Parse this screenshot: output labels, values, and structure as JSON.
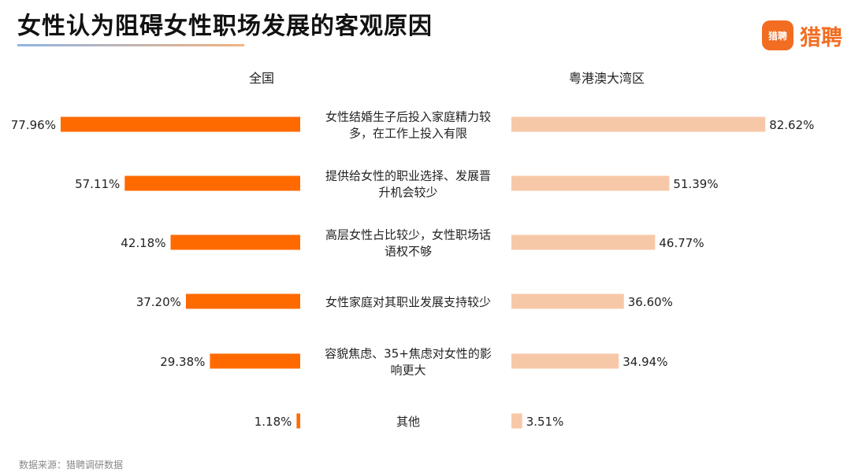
{
  "title": "女性认为阻碍女性职场发展的客观原因",
  "logo": {
    "badge": "猎聘",
    "text": "猎聘"
  },
  "source": "数据来源：猎聘调研数据",
  "colors": {
    "national": "#ff6a00",
    "gba": "#f7c8a8",
    "accent": "#f26d22"
  },
  "chart_data": {
    "type": "bar",
    "categories": [
      [
        "女性结婚生子后投入家庭精力较",
        "多，在工作上投入有限"
      ],
      [
        "提供给女性的职业选择、发展晋",
        "升机会较少"
      ],
      [
        "高层女性占比较少，女性职场话",
        "语权不够"
      ],
      [
        "女性家庭对其职业发展支持较少"
      ],
      [
        "容貌焦虑、35+焦虑对女性的影",
        "响更大"
      ],
      [
        "其他"
      ]
    ],
    "series": [
      {
        "name": "全国",
        "values": [
          77.96,
          57.11,
          42.18,
          37.2,
          29.38,
          1.18
        ],
        "labels": [
          "77.96%",
          "57.11%",
          "42.18%",
          "37.20%",
          "29.38%",
          "1.18%"
        ]
      },
      {
        "name": "粤港澳大湾区",
        "values": [
          82.62,
          51.39,
          46.77,
          36.6,
          34.94,
          3.51
        ],
        "labels": [
          "82.62%",
          "51.39%",
          "46.77%",
          "36.60%",
          "34.94%",
          "3.51%"
        ]
      }
    ],
    "unit": "%"
  }
}
